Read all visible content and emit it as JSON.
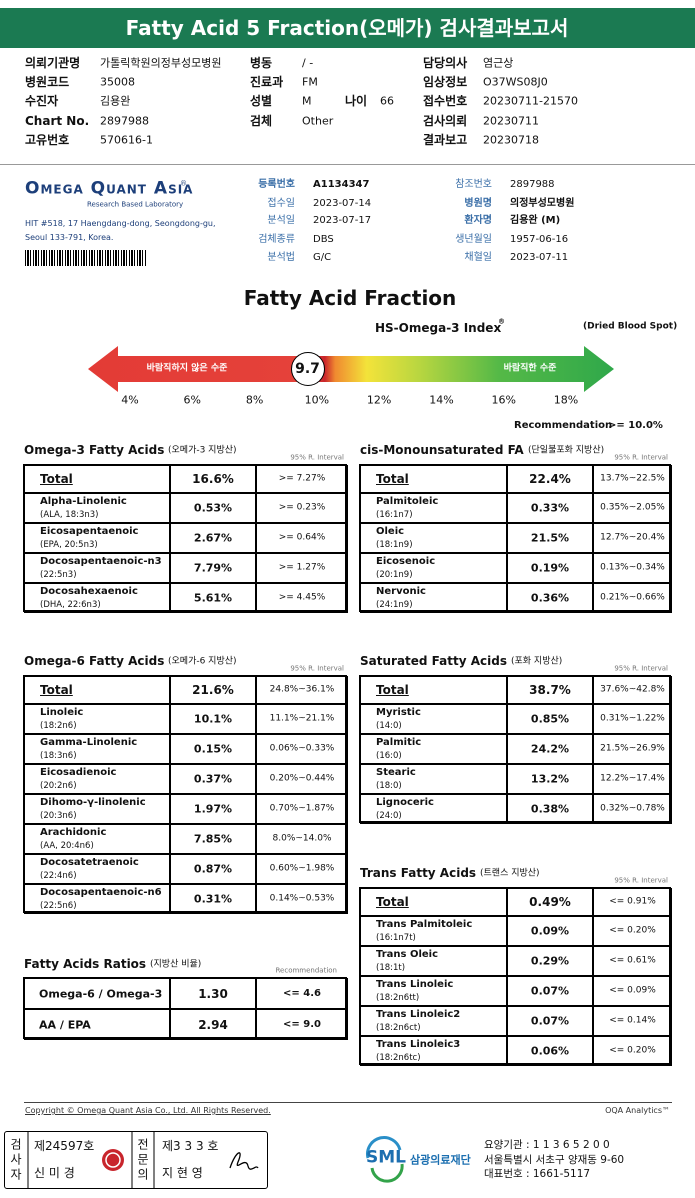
{
  "header": {
    "title": "Fatty Acid 5 Fraction(오메가) 검사결과보고서"
  },
  "patient": {
    "left": [
      [
        "의뢰기관명",
        "가톨릭학원의정부성모병원"
      ],
      [
        "병원코드",
        "35008"
      ],
      [
        "수진자",
        "김용완"
      ],
      [
        "Chart No.",
        "2897988"
      ],
      [
        "고유번호",
        "570616-1"
      ]
    ],
    "mid": [
      [
        "병동",
        "/ -"
      ],
      [
        "진료과",
        "FM"
      ],
      [
        "성별",
        "M"
      ],
      [
        "검체",
        "Other"
      ]
    ],
    "age": [
      "나이",
      "66"
    ],
    "right": [
      [
        "담당의사",
        "염근상"
      ],
      [
        "임상정보",
        "O37WS08J0"
      ],
      [
        "접수번호",
        "20230711-21570"
      ],
      [
        "검사의뢰",
        "20230711"
      ],
      [
        "결과보고",
        "20230718"
      ]
    ]
  },
  "lab": {
    "logo": "Omega Quant Asia",
    "logo_mark": "®",
    "tagline": "Research Based Laboratory",
    "address": [
      "HIT #518, 17 Haengdang-dong, Seongdong-gu,",
      "Seoul 133-791, Korea."
    ],
    "fields": [
      [
        "등록번호",
        "A1134347"
      ],
      [
        "접수일",
        "2023-07-14"
      ],
      [
        "분석일",
        "2023-07-17"
      ],
      [
        "검체종류",
        "DBS"
      ],
      [
        "분석법",
        "G/C"
      ]
    ],
    "fields2": [
      [
        "참조번호",
        "2897988"
      ],
      [
        "병원명",
        "의정부성모병원"
      ],
      [
        "환자명",
        "김용완 (M)"
      ],
      [
        "생년월일",
        "1957-06-16"
      ],
      [
        "채혈일",
        "2023-07-11"
      ]
    ]
  },
  "index": {
    "title": "Fatty Acid Fraction",
    "subtitle": "HS-Omega-3 Index",
    "subtitle_mark": "®",
    "note": "(Dried Blood Spot)",
    "left_label": "바람직하지 않은 수준",
    "right_label": "바람직한 수준",
    "value": 9.7,
    "xlim": [
      4,
      18
    ],
    "ticks": [
      {
        "value": 4,
        "label": "4%"
      },
      {
        "value": 6,
        "label": "6%"
      },
      {
        "value": 8,
        "label": "8%"
      },
      {
        "value": 10,
        "label": "10%"
      },
      {
        "value": 12,
        "label": "12%"
      },
      {
        "value": 14,
        "label": "14%"
      },
      {
        "value": 16,
        "label": "16%"
      },
      {
        "value": 18,
        "label": "18%"
      }
    ],
    "recommendation_label": "Recommendation",
    "recommendation": ">= 10.0%"
  },
  "tables": [
    {
      "title": "Omega-3 Fatty Acids",
      "subtitle": "(오메가-3 지방산)",
      "interval_label": "95% R. Interval",
      "total": {
        "name": "Total",
        "value": "16.6%",
        "range": ">= 7.27%"
      },
      "rows": [
        {
          "name": "Alpha-Linolenic",
          "sub": "(ALA, 18:3n3)",
          "value": "0.53%",
          "range": ">= 0.23%"
        },
        {
          "name": "Eicosapentaenoic",
          "sub": "(EPA, 20:5n3)",
          "value": "2.67%",
          "range": ">= 0.64%"
        },
        {
          "name": "Docosapentaenoic-n3",
          "sub": "(22:5n3)",
          "value": "7.79%",
          "range": ">= 1.27%"
        },
        {
          "name": "Docosahexaenoic",
          "sub": "(DHA, 22:6n3)",
          "value": "5.61%",
          "range": ">= 4.45%"
        }
      ]
    },
    {
      "title": "cis-Monounsaturated FA",
      "subtitle": "(단일불포화 지방산)",
      "interval_label": "95% R. Interval",
      "total": {
        "name": "Total",
        "value": "22.4%",
        "range": "13.7%~22.5%"
      },
      "rows": [
        {
          "name": "Palmitoleic",
          "sub": "(16:1n7)",
          "value": "0.33%",
          "range": "0.35%~2.05%"
        },
        {
          "name": "Oleic",
          "sub": "(18:1n9)",
          "value": "21.5%",
          "range": "12.7%~20.4%"
        },
        {
          "name": "Eicosenoic",
          "sub": "(20:1n9)",
          "value": "0.19%",
          "range": "0.13%~0.34%"
        },
        {
          "name": "Nervonic",
          "sub": "(24:1n9)",
          "value": "0.36%",
          "range": "0.21%~0.66%"
        }
      ]
    },
    {
      "title": "Omega-6 Fatty Acids",
      "subtitle": "(오메가-6 지방산)",
      "interval_label": "95% R. Interval",
      "total": {
        "name": "Total",
        "value": "21.6%",
        "range": "24.8%~36.1%"
      },
      "rows": [
        {
          "name": "Linoleic",
          "sub": "(18:2n6)",
          "value": "10.1%",
          "range": "11.1%~21.1%"
        },
        {
          "name": "Gamma-Linolenic",
          "sub": "(18:3n6)",
          "value": "0.15%",
          "range": "0.06%~0.33%"
        },
        {
          "name": "Eicosadienoic",
          "sub": "(20:2n6)",
          "value": "0.37%",
          "range": "0.20%~0.44%"
        },
        {
          "name": "Dihomo-γ-linolenic",
          "sub": "(20:3n6)",
          "value": "1.97%",
          "range": "0.70%~1.87%"
        },
        {
          "name": "Arachidonic",
          "sub": "(AA, 20:4n6)",
          "value": "7.85%",
          "range": "8.0%~14.0%"
        },
        {
          "name": "Docosatetraenoic",
          "sub": "(22:4n6)",
          "value": "0.87%",
          "range": "0.60%~1.98%"
        },
        {
          "name": "Docosapentaenoic-n6",
          "sub": "(22:5n6)",
          "value": "0.31%",
          "range": "0.14%~0.53%"
        }
      ]
    },
    {
      "title": "Saturated Fatty Acids",
      "subtitle": "(포화 지방산)",
      "interval_label": "95% R. Interval",
      "total": {
        "name": "Total",
        "value": "38.7%",
        "range": "37.6%~42.8%"
      },
      "rows": [
        {
          "name": "Myristic",
          "sub": "(14:0)",
          "value": "0.85%",
          "range": "0.31%~1.22%"
        },
        {
          "name": "Palmitic",
          "sub": "(16:0)",
          "value": "24.2%",
          "range": "21.5%~26.9%"
        },
        {
          "name": "Stearic",
          "sub": "(18:0)",
          "value": "13.2%",
          "range": "12.2%~17.4%"
        },
        {
          "name": "Lignoceric",
          "sub": "(24:0)",
          "value": "0.38%",
          "range": "0.32%~0.78%"
        }
      ]
    },
    {
      "title": "Trans Fatty Acids",
      "subtitle": "(트랜스 지방산)",
      "interval_label": "95% R. Interval",
      "total": {
        "name": "Total",
        "value": "0.49%",
        "range": "<= 0.91%"
      },
      "rows": [
        {
          "name": "Trans Palmitoleic",
          "sub": "(16:1n7t)",
          "value": "0.09%",
          "range": "<= 0.20%"
        },
        {
          "name": "Trans Oleic",
          "sub": "(18:1t)",
          "value": "0.29%",
          "range": "<= 0.61%"
        },
        {
          "name": "Trans Linoleic",
          "sub": "(18:2n6tt)",
          "value": "0.07%",
          "range": "<= 0.09%"
        },
        {
          "name": "Trans Linoleic2",
          "sub": "(18:2n6ct)",
          "value": "0.07%",
          "range": "<= 0.14%"
        },
        {
          "name": "Trans Linoleic3",
          "sub": "(18:2n6tc)",
          "value": "0.06%",
          "range": "<= 0.20%"
        }
      ]
    }
  ],
  "ratios": {
    "title": "Fatty Acids Ratios",
    "subtitle": "(지방산 비율)",
    "interval_label": "Recommendation",
    "rows": [
      {
        "name": "Omega-6 / Omega-3",
        "value": "1.30",
        "range": "<= 4.6"
      },
      {
        "name": "AA / EPA",
        "value": "2.94",
        "range": "<= 9.0"
      }
    ]
  },
  "footer": {
    "copyright": "Copyright © Omega Quant Asia Co., Ltd.  All Rights Reserved.",
    "analytics": "OQA Analytics™",
    "tester_label": "검사자",
    "tester_no": "제24597호",
    "tester_name": "신 미 경",
    "doctor_label": "전문의",
    "doctor_no": "제3 3 3 호",
    "doctor_name": "지 현 영",
    "org_logo": "SML",
    "org_name": "삼광의료재단",
    "org_info": [
      "요양기관 : 1 1 3 6 5 2 0 0",
      "서울특별시 서초구 양재동 9-60",
      "대표번호 : 1661-5117"
    ]
  }
}
